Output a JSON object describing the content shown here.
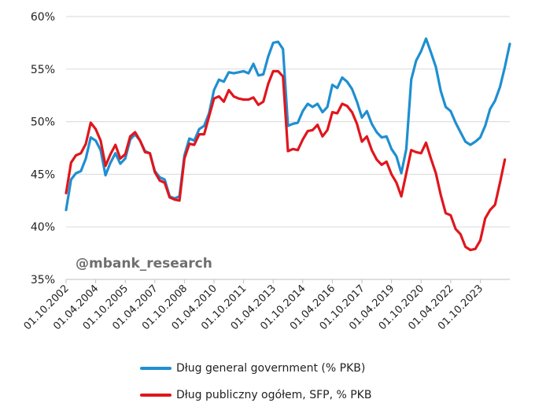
{
  "chart_data": {
    "type": "line",
    "title": "",
    "xlabel": "",
    "ylabel": "",
    "ylim": [
      35,
      60
    ],
    "y_ticks": [
      "35%",
      "40%",
      "45%",
      "50%",
      "55%",
      "60%"
    ],
    "y_tick_values": [
      35,
      40,
      45,
      50,
      55,
      60
    ],
    "x_tick_labels": [
      "01.10.2002",
      "01.04.2004",
      "01.10.2005",
      "01.04.2007",
      "01.10.2008",
      "01.04.2010",
      "01.10.2011",
      "01.04.2013",
      "01.10.2014",
      "01.04.2016",
      "01.10.2017",
      "01.04.2019",
      "01.10.2020",
      "01.04.2022",
      "01.10.2023"
    ],
    "x_tick_positions": [
      0,
      6,
      12,
      18,
      24,
      30,
      36,
      42,
      48,
      54,
      60,
      66,
      72,
      78,
      84
    ],
    "x_start": "01.10.2002",
    "x_frequency": "quarterly",
    "grid": "horizontal",
    "legend_position": "bottom",
    "watermark": "@mbank_research",
    "series": [
      {
        "name": "Dług general government (% PKB)",
        "color": "#1f8fd1",
        "values": [
          41.6,
          44.5,
          45.1,
          45.3,
          46.5,
          48.5,
          48.2,
          47.3,
          44.9,
          46.1,
          47.0,
          46.0,
          46.5,
          48.3,
          48.8,
          48.2,
          47.2,
          47.0,
          45.3,
          44.7,
          44.5,
          42.9,
          42.7,
          42.9,
          46.8,
          48.4,
          48.2,
          49.3,
          49.6,
          50.8,
          53.0,
          54.0,
          53.8,
          54.7,
          54.6,
          54.7,
          54.8,
          54.6,
          55.5,
          54.4,
          54.5,
          56.2,
          57.5,
          57.6,
          56.9,
          49.6,
          49.8,
          49.9,
          51.0,
          51.7,
          51.4,
          51.7,
          50.9,
          51.4,
          53.5,
          53.2,
          54.2,
          53.8,
          53.1,
          51.9,
          50.4,
          51.0,
          49.8,
          49.0,
          48.5,
          48.6,
          47.4,
          46.7,
          45.1,
          47.4,
          54.0,
          55.8,
          56.7,
          57.9,
          56.6,
          55.2,
          52.9,
          51.4,
          51.0,
          49.9,
          49.0,
          48.1,
          47.8,
          48.1,
          48.5,
          49.6,
          51.2,
          52.0,
          53.3,
          55.2,
          57.4
        ]
      },
      {
        "name": "Dług publiczny ogółem, SFP, % PKB",
        "color": "#e0161d",
        "values": [
          43.2,
          46.1,
          46.8,
          47.0,
          47.9,
          49.9,
          49.3,
          48.2,
          45.8,
          46.9,
          47.8,
          46.5,
          46.9,
          48.6,
          49.0,
          48.2,
          47.1,
          47.0,
          45.2,
          44.4,
          44.2,
          42.8,
          42.6,
          42.5,
          46.5,
          47.9,
          47.8,
          48.8,
          48.8,
          50.5,
          52.2,
          52.4,
          51.9,
          53.0,
          52.4,
          52.2,
          52.1,
          52.1,
          52.3,
          51.6,
          51.9,
          53.6,
          54.8,
          54.8,
          54.3,
          47.2,
          47.4,
          47.3,
          48.3,
          49.1,
          49.2,
          49.7,
          48.6,
          49.2,
          50.9,
          50.8,
          51.7,
          51.5,
          50.9,
          49.8,
          48.1,
          48.6,
          47.3,
          46.4,
          45.9,
          46.2,
          45.0,
          44.2,
          42.9,
          45.1,
          47.3,
          47.1,
          47.0,
          48.0,
          46.5,
          45.1,
          43.0,
          41.3,
          41.1,
          39.8,
          39.3,
          38.1,
          37.8,
          37.9,
          38.7,
          40.8,
          41.6,
          42.1,
          44.2,
          46.4
        ]
      }
    ]
  }
}
